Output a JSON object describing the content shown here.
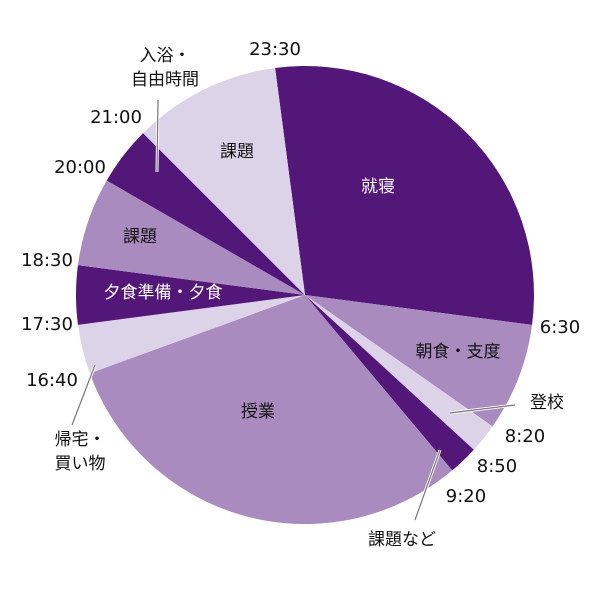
{
  "chart_data": {
    "type": "pie",
    "categories": [
      "就寝",
      "朝食・支度",
      "登校",
      "課題など",
      "授業",
      "帰宅・\n買い物",
      "夕食準備・夕食",
      "課題",
      "入浴・\n自由時間",
      "課題"
    ],
    "values": [
      420,
      110,
      30,
      30,
      440,
      50,
      60,
      90,
      60,
      150
    ],
    "colors": [
      "#521779",
      "#a98bbf",
      "#ddd3e8",
      "#521779",
      "#a98bbf",
      "#ddd3e8",
      "#521779",
      "#a98bbf",
      "#521779",
      "#ddd3e8"
    ],
    "time_labels": [
      "23:30",
      "6:30",
      "8:20",
      "8:50",
      "9:20",
      "16:40",
      "17:30",
      "18:30",
      "20:00",
      "21:00"
    ]
  }
}
